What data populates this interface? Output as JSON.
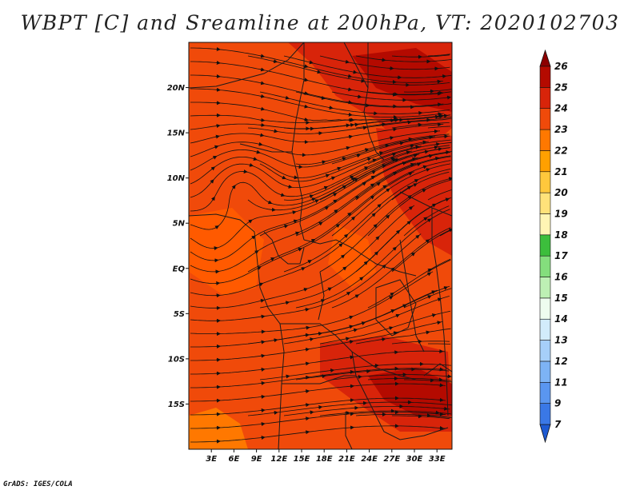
{
  "title": "WBPT [C] and Sreamline at 200hPa, VT: 2020102703",
  "credit": "GrADS: IGES/COLA",
  "map": {
    "lat_labels": [
      "20N",
      "15N",
      "10N",
      "5N",
      "EQ",
      "5S",
      "10S",
      "15S"
    ],
    "lat_values": [
      20,
      15,
      10,
      5,
      0,
      -5,
      -10,
      -15
    ],
    "lon_labels": [
      "3E",
      "6E",
      "9E",
      "12E",
      "15E",
      "18E",
      "21E",
      "24E",
      "27E",
      "30E",
      "33E"
    ],
    "lon_values": [
      3,
      6,
      9,
      12,
      15,
      18,
      21,
      24,
      27,
      30,
      33
    ],
    "lon_range": [
      0,
      35
    ],
    "lat_range": [
      -20,
      25
    ]
  },
  "colorbar": {
    "labels": [
      "7",
      "9",
      "11",
      "12",
      "13",
      "14",
      "15",
      "16",
      "17",
      "18",
      "19",
      "20",
      "21",
      "22",
      "23",
      "24",
      "25",
      "26"
    ],
    "colors": [
      "#1e5ad2",
      "#3a78e6",
      "#5a96f0",
      "#7db3f5",
      "#a6cff9",
      "#d2ecfb",
      "#eefcef",
      "#bdf0b4",
      "#84de7d",
      "#3cbe3c",
      "#fff5b4",
      "#ffe27a",
      "#ffc83c",
      "#ffa000",
      "#ff7800",
      "#f04a0a",
      "#d8240a",
      "#b40a00",
      "#8c0000"
    ]
  }
}
